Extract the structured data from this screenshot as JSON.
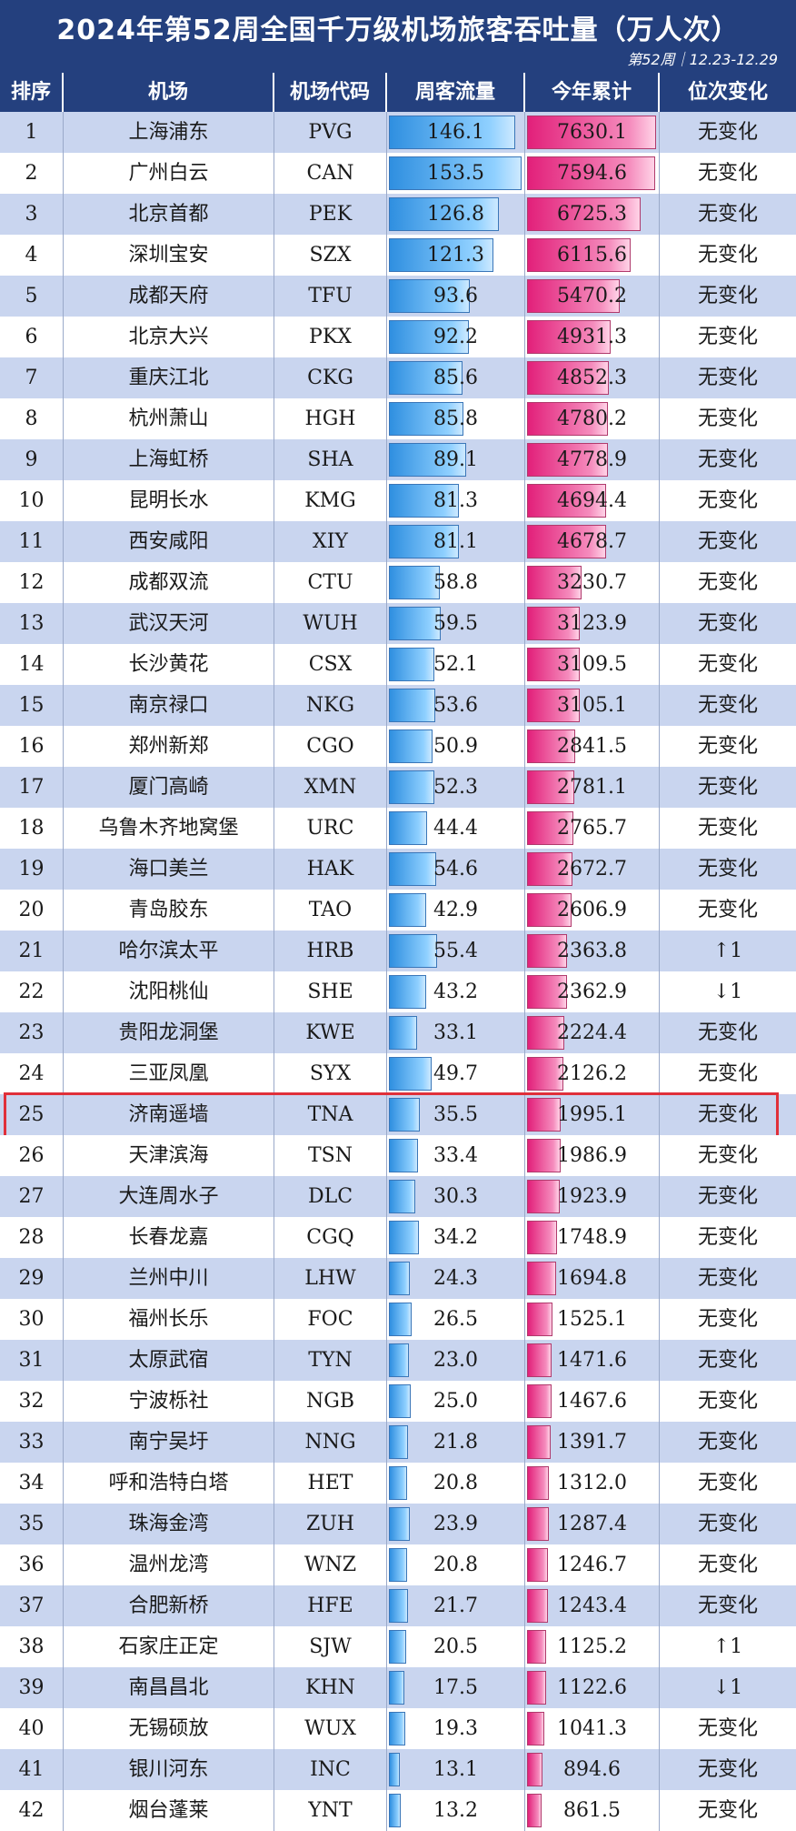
{
  "title": "2024年第52周全国千万级机场旅客吞吐量（万人次）",
  "subtitle": "第52周｜12.23-12.29",
  "headers": [
    "排序",
    "机场",
    "机场代码",
    "周客流量",
    "今年累计",
    "位次变化"
  ],
  "highlight_rank": 25,
  "colors": {
    "header_bg": "#24407e",
    "weekly_bar": "#2f8fe0",
    "ytd_bar": "#e2207a",
    "highlight": "#e0303a",
    "row_alt": "#c9d5ef"
  },
  "chart_data": {
    "type": "table",
    "columns": [
      "排序",
      "机场",
      "机场代码",
      "周客流量",
      "今年累计",
      "位次变化"
    ],
    "weekly_max": 153.5,
    "ytd_max": 7630.1,
    "rows": [
      {
        "rank": "1",
        "airport": "上海浦东",
        "code": "PVG",
        "weekly": "146.1",
        "ytd": "7630.1",
        "change": "无变化"
      },
      {
        "rank": "2",
        "airport": "广州白云",
        "code": "CAN",
        "weekly": "153.5",
        "ytd": "7594.6",
        "change": "无变化"
      },
      {
        "rank": "3",
        "airport": "北京首都",
        "code": "PEK",
        "weekly": "126.8",
        "ytd": "6725.3",
        "change": "无变化"
      },
      {
        "rank": "4",
        "airport": "深圳宝安",
        "code": "SZX",
        "weekly": "121.3",
        "ytd": "6115.6",
        "change": "无变化"
      },
      {
        "rank": "5",
        "airport": "成都天府",
        "code": "TFU",
        "weekly": "93.6",
        "ytd": "5470.2",
        "change": "无变化"
      },
      {
        "rank": "6",
        "airport": "北京大兴",
        "code": "PKX",
        "weekly": "92.2",
        "ytd": "4931.3",
        "change": "无变化"
      },
      {
        "rank": "7",
        "airport": "重庆江北",
        "code": "CKG",
        "weekly": "85.6",
        "ytd": "4852.3",
        "change": "无变化"
      },
      {
        "rank": "8",
        "airport": "杭州萧山",
        "code": "HGH",
        "weekly": "85.8",
        "ytd": "4780.2",
        "change": "无变化"
      },
      {
        "rank": "9",
        "airport": "上海虹桥",
        "code": "SHA",
        "weekly": "89.1",
        "ytd": "4778.9",
        "change": "无变化"
      },
      {
        "rank": "10",
        "airport": "昆明长水",
        "code": "KMG",
        "weekly": "81.3",
        "ytd": "4694.4",
        "change": "无变化"
      },
      {
        "rank": "11",
        "airport": "西安咸阳",
        "code": "XIY",
        "weekly": "81.1",
        "ytd": "4678.7",
        "change": "无变化"
      },
      {
        "rank": "12",
        "airport": "成都双流",
        "code": "CTU",
        "weekly": "58.8",
        "ytd": "3230.7",
        "change": "无变化"
      },
      {
        "rank": "13",
        "airport": "武汉天河",
        "code": "WUH",
        "weekly": "59.5",
        "ytd": "3123.9",
        "change": "无变化"
      },
      {
        "rank": "14",
        "airport": "长沙黄花",
        "code": "CSX",
        "weekly": "52.1",
        "ytd": "3109.5",
        "change": "无变化"
      },
      {
        "rank": "15",
        "airport": "南京禄口",
        "code": "NKG",
        "weekly": "53.6",
        "ytd": "3105.1",
        "change": "无变化"
      },
      {
        "rank": "16",
        "airport": "郑州新郑",
        "code": "CGO",
        "weekly": "50.9",
        "ytd": "2841.5",
        "change": "无变化"
      },
      {
        "rank": "17",
        "airport": "厦门高崎",
        "code": "XMN",
        "weekly": "52.3",
        "ytd": "2781.1",
        "change": "无变化"
      },
      {
        "rank": "18",
        "airport": "乌鲁木齐地窝堡",
        "code": "URC",
        "weekly": "44.4",
        "ytd": "2765.7",
        "change": "无变化"
      },
      {
        "rank": "19",
        "airport": "海口美兰",
        "code": "HAK",
        "weekly": "54.6",
        "ytd": "2672.7",
        "change": "无变化"
      },
      {
        "rank": "20",
        "airport": "青岛胶东",
        "code": "TAO",
        "weekly": "42.9",
        "ytd": "2606.9",
        "change": "无变化"
      },
      {
        "rank": "21",
        "airport": "哈尔滨太平",
        "code": "HRB",
        "weekly": "55.4",
        "ytd": "2363.8",
        "change": "↑1"
      },
      {
        "rank": "22",
        "airport": "沈阳桃仙",
        "code": "SHE",
        "weekly": "43.2",
        "ytd": "2362.9",
        "change": "↓1"
      },
      {
        "rank": "23",
        "airport": "贵阳龙洞堡",
        "code": "KWE",
        "weekly": "33.1",
        "ytd": "2224.4",
        "change": "无变化"
      },
      {
        "rank": "24",
        "airport": "三亚凤凰",
        "code": "SYX",
        "weekly": "49.7",
        "ytd": "2126.2",
        "change": "无变化"
      },
      {
        "rank": "25",
        "airport": "济南遥墙",
        "code": "TNA",
        "weekly": "35.5",
        "ytd": "1995.1",
        "change": "无变化"
      },
      {
        "rank": "26",
        "airport": "天津滨海",
        "code": "TSN",
        "weekly": "33.4",
        "ytd": "1986.9",
        "change": "无变化"
      },
      {
        "rank": "27",
        "airport": "大连周水子",
        "code": "DLC",
        "weekly": "30.3",
        "ytd": "1923.9",
        "change": "无变化"
      },
      {
        "rank": "28",
        "airport": "长春龙嘉",
        "code": "CGQ",
        "weekly": "34.2",
        "ytd": "1748.9",
        "change": "无变化"
      },
      {
        "rank": "29",
        "airport": "兰州中川",
        "code": "LHW",
        "weekly": "24.3",
        "ytd": "1694.8",
        "change": "无变化"
      },
      {
        "rank": "30",
        "airport": "福州长乐",
        "code": "FOC",
        "weekly": "26.5",
        "ytd": "1525.1",
        "change": "无变化"
      },
      {
        "rank": "31",
        "airport": "太原武宿",
        "code": "TYN",
        "weekly": "23.0",
        "ytd": "1471.6",
        "change": "无变化"
      },
      {
        "rank": "32",
        "airport": "宁波栎社",
        "code": "NGB",
        "weekly": "25.0",
        "ytd": "1467.6",
        "change": "无变化"
      },
      {
        "rank": "33",
        "airport": "南宁吴圩",
        "code": "NNG",
        "weekly": "21.8",
        "ytd": "1391.7",
        "change": "无变化"
      },
      {
        "rank": "34",
        "airport": "呼和浩特白塔",
        "code": "HET",
        "weekly": "20.8",
        "ytd": "1312.0",
        "change": "无变化"
      },
      {
        "rank": "35",
        "airport": "珠海金湾",
        "code": "ZUH",
        "weekly": "23.9",
        "ytd": "1287.4",
        "change": "无变化"
      },
      {
        "rank": "36",
        "airport": "温州龙湾",
        "code": "WNZ",
        "weekly": "20.8",
        "ytd": "1246.7",
        "change": "无变化"
      },
      {
        "rank": "37",
        "airport": "合肥新桥",
        "code": "HFE",
        "weekly": "21.7",
        "ytd": "1243.4",
        "change": "无变化"
      },
      {
        "rank": "38",
        "airport": "石家庄正定",
        "code": "SJW",
        "weekly": "20.5",
        "ytd": "1125.2",
        "change": "↑1"
      },
      {
        "rank": "39",
        "airport": "南昌昌北",
        "code": "KHN",
        "weekly": "17.5",
        "ytd": "1122.6",
        "change": "↓1"
      },
      {
        "rank": "40",
        "airport": "无锡硕放",
        "code": "WUX",
        "weekly": "19.3",
        "ytd": "1041.3",
        "change": "无变化"
      },
      {
        "rank": "41",
        "airport": "银川河东",
        "code": "INC",
        "weekly": "13.1",
        "ytd": "894.6",
        "change": "无变化"
      },
      {
        "rank": "42",
        "airport": "烟台蓬莱",
        "code": "YNT",
        "weekly": "13.2",
        "ytd": "861.5",
        "change": "无变化"
      }
    ]
  }
}
